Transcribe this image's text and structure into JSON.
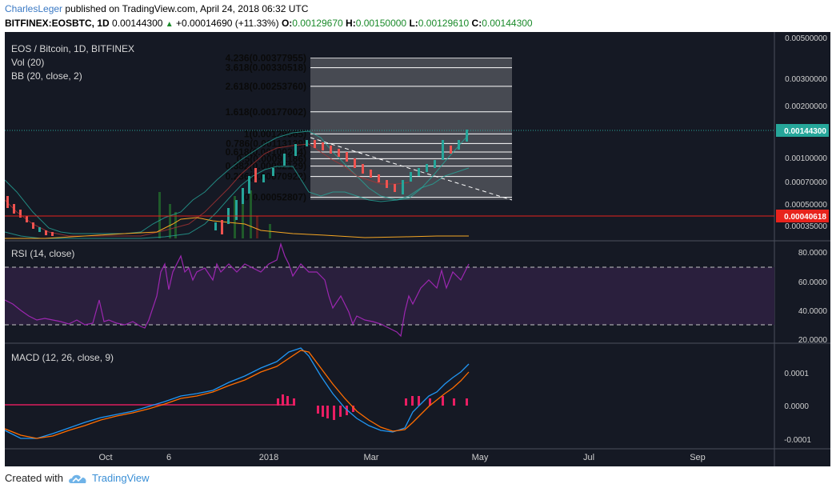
{
  "header": {
    "author": "CharlesLeger",
    "published_text": "published on TradingView.com, April 24, 2018 06:32 UTC",
    "symbol": "BITFINEX:EOSBTC, 1D",
    "last": "0.00144300",
    "change": "+0.00014690 (+11.33%)",
    "o_label": "O:",
    "o": "0.00129670",
    "h_label": "H:",
    "h": "0.00150000",
    "l_label": "L:",
    "l": "0.00129610",
    "c_label": "C:",
    "c": "0.00144300"
  },
  "main_pane": {
    "title": "EOS / Bitcoin, 1D, BITFINEX",
    "vol_label": "Vol (20)",
    "bb_label": "BB (20, close, 2)",
    "price_axis": [
      "0.00500000",
      "0.00300000",
      "0.00200000",
      "0.00100000",
      "0.00070000",
      "0.00050000",
      "0.00035000"
    ],
    "last_price_badge": "0.00144300",
    "red_line_badge": "0.00040618"
  },
  "fib_levels": [
    {
      "label": "4.236(0.00377955)",
      "price": 0.00377955
    },
    {
      "label": "3.618(0.00330518)",
      "price": 0.00330518
    },
    {
      "label": "2.618(0.00253760)",
      "price": 0.0025376
    },
    {
      "label": "1.618(0.00177002)",
      "price": 0.00177002
    },
    {
      "label": "1(0.00129565)",
      "price": 0.00129565
    },
    {
      "label": "0.786(0.00113139)",
      "price": 0.00113139
    },
    {
      "label": "0.618(0.00100244)",
      "price": 0.00100244
    },
    {
      "label": "0.5(0.00091186)",
      "price": 0.00091186
    },
    {
      "label": "0.382(0.00082129)",
      "price": 0.00082129
    },
    {
      "label": "0.236(0.00070922)",
      "price": 0.00070922
    },
    {
      "label": "0(0.00052807)",
      "price": 0.00052807
    }
  ],
  "rsi_pane": {
    "title": "RSI (14, close)",
    "axis": [
      "80.0000",
      "60.0000",
      "40.0000",
      "20.0000"
    ]
  },
  "macd_pane": {
    "title": "MACD (12, 26, close, 9)",
    "axis": [
      "0.0001",
      "0.0000",
      "-0.0001"
    ]
  },
  "time_axis": [
    "Oct",
    "6",
    "2018",
    "Mar",
    "May",
    "Jul",
    "Sep"
  ],
  "footer": {
    "created_with": "Created with",
    "brand": "TradingView"
  },
  "colors": {
    "background": "#151924",
    "up": "#26a69a",
    "down": "#ef5350",
    "rsi": "#9c27b0",
    "macd": "#2196f3",
    "signal": "#ff6d00",
    "histogram": "#e91e63",
    "last_price": "#26a69a",
    "red_line": "#e8231c"
  }
}
